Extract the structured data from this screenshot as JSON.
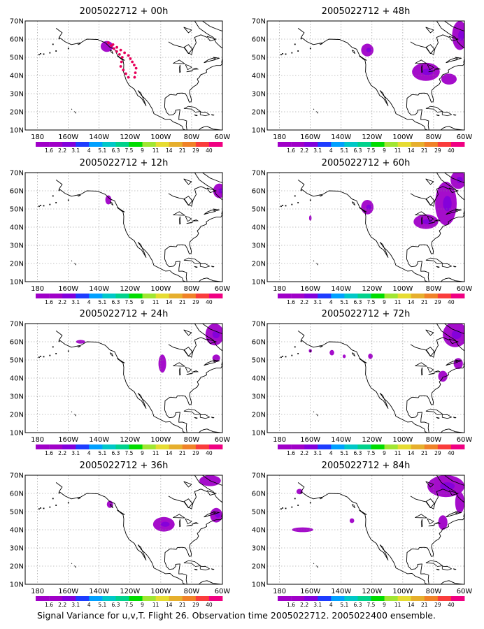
{
  "figure": {
    "caption": "Signal Variance for u,v,T. Flight 26. Observation time 2005022712. 2005022400 ensemble."
  },
  "axes": {
    "lat_labels": [
      "70N",
      "60N",
      "50N",
      "40N",
      "30N",
      "20N",
      "10N"
    ],
    "lon_labels": [
      "180",
      "160W",
      "140W",
      "120W",
      "100W",
      "80W",
      "60W"
    ]
  },
  "colorbar": {
    "labels": [
      "1.6",
      "2.2",
      "3.1",
      "4",
      "5.1",
      "6.3",
      "7.5",
      "9",
      "11",
      "14",
      "21",
      "29",
      "40"
    ],
    "colors": [
      "#a000c8",
      "#8200dc",
      "#1e3cff",
      "#00a0ff",
      "#00c8c8",
      "#00d28c",
      "#00dc00",
      "#a0e632",
      "#e6dc32",
      "#e6af2d",
      "#f08228",
      "#fa3c3c",
      "#f00082"
    ]
  },
  "panels": [
    {
      "title": "2005022712 + 00h",
      "flight_track": [
        [
          -134,
          58
        ],
        [
          -125,
          50
        ],
        [
          -126,
          45
        ],
        [
          -121,
          39
        ],
        [
          -117,
          39
        ],
        [
          -116,
          44
        ],
        [
          -121,
          51
        ],
        [
          -131,
          57
        ]
      ],
      "blobs": [
        [
          -135,
          56,
          4,
          3
        ]
      ]
    },
    {
      "title": "2005022712 + 12h",
      "blobs": [
        [
          -134,
          55,
          2,
          2.5
        ],
        [
          -62,
          60,
          4,
          4
        ]
      ]
    },
    {
      "title": "2005022712 + 24h",
      "blobs": [
        [
          -152,
          60,
          3,
          1
        ],
        [
          -99,
          48,
          2.5,
          5
        ],
        [
          -64,
          51,
          2.5,
          2
        ],
        [
          -65,
          64,
          6,
          6
        ]
      ]
    },
    {
      "title": "2005022712 + 36h",
      "blobs": [
        [
          -133,
          54,
          2,
          2
        ],
        [
          -98,
          43,
          7,
          4
        ],
        [
          -64,
          48,
          4,
          4
        ],
        [
          -68,
          67,
          7,
          3
        ]
      ]
    },
    {
      "title": "2005022712 + 48h",
      "blobs": [
        [
          -123,
          54,
          4,
          3.5
        ],
        [
          -85,
          42,
          9,
          5
        ],
        [
          -70,
          38,
          5,
          3
        ],
        [
          -63,
          62,
          5,
          8
        ]
      ]
    },
    {
      "title": "2005022712 + 60h",
      "blobs": [
        [
          -160,
          45,
          0.8,
          1.5
        ],
        [
          -123,
          51,
          4,
          4
        ],
        [
          -85,
          43,
          8,
          4
        ],
        [
          -72,
          53,
          7,
          12
        ],
        [
          -64,
          66,
          5,
          5
        ]
      ]
    },
    {
      "title": "2005022712 + 72h",
      "blobs": [
        [
          -160,
          55,
          1,
          1
        ],
        [
          -146,
          54,
          1.5,
          1.5
        ],
        [
          -138,
          52,
          1,
          1
        ],
        [
          -121,
          52,
          1.5,
          1.5
        ],
        [
          -74,
          41,
          3,
          3
        ],
        [
          -64,
          48,
          3,
          3
        ],
        [
          -66,
          64,
          8,
          7
        ]
      ]
    },
    {
      "title": "2005022712 + 84h",
      "blobs": [
        [
          -167,
          61,
          2,
          1.5
        ],
        [
          -165,
          40,
          7,
          1.3
        ],
        [
          -133,
          45,
          1.5,
          1.3
        ],
        [
          -74,
          44,
          3,
          4
        ],
        [
          -72,
          64,
          12,
          6
        ],
        [
          -63,
          55,
          3,
          6
        ]
      ]
    }
  ]
}
